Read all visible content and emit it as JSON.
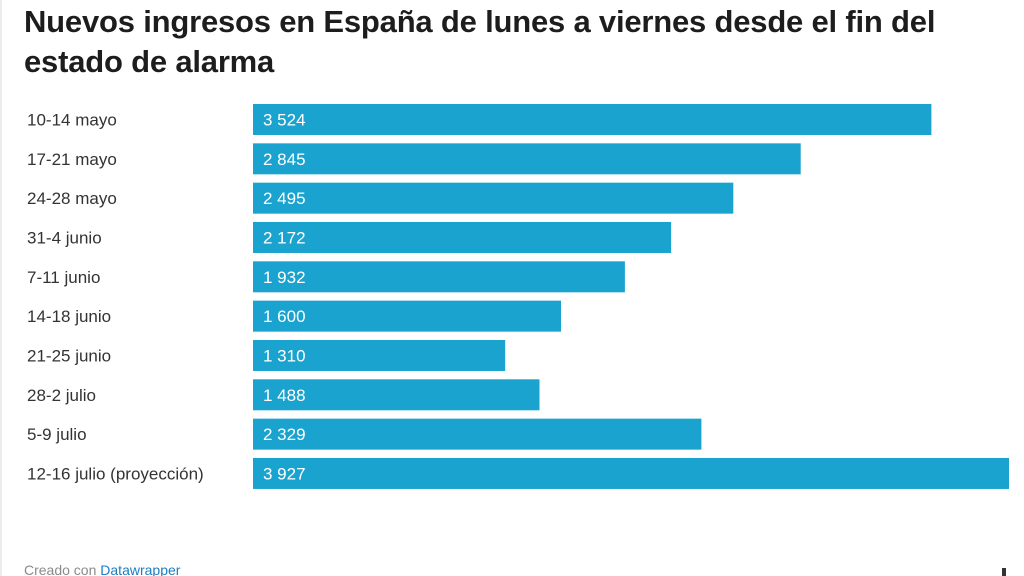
{
  "chart_data": {
    "type": "bar",
    "orientation": "horizontal",
    "title": "Nuevos ingresos en España de lunes a viernes desde el fin del estado de alarma",
    "categories": [
      "10-14 mayo",
      "17-21 mayo",
      "24-28 mayo",
      "31-4 junio",
      "7-11 junio",
      "14-18 junio",
      "21-25 junio",
      "28-2 julio",
      "5-9 julio",
      "12-16 julio (proyección)"
    ],
    "values": [
      3524,
      2845,
      2495,
      2172,
      1932,
      1600,
      1310,
      1488,
      2329,
      3927
    ],
    "value_labels": [
      "3 524",
      "2 845",
      "2 495",
      "2 172",
      "1 932",
      "1 600",
      "1 310",
      "1 488",
      "2 329",
      "3 927"
    ],
    "xlim": [
      0,
      3927
    ],
    "grid": false,
    "legend": "none",
    "bar_color": "#1ba3cf"
  },
  "footer": {
    "prefix": "Creado con",
    "link": "Datawrapper"
  }
}
